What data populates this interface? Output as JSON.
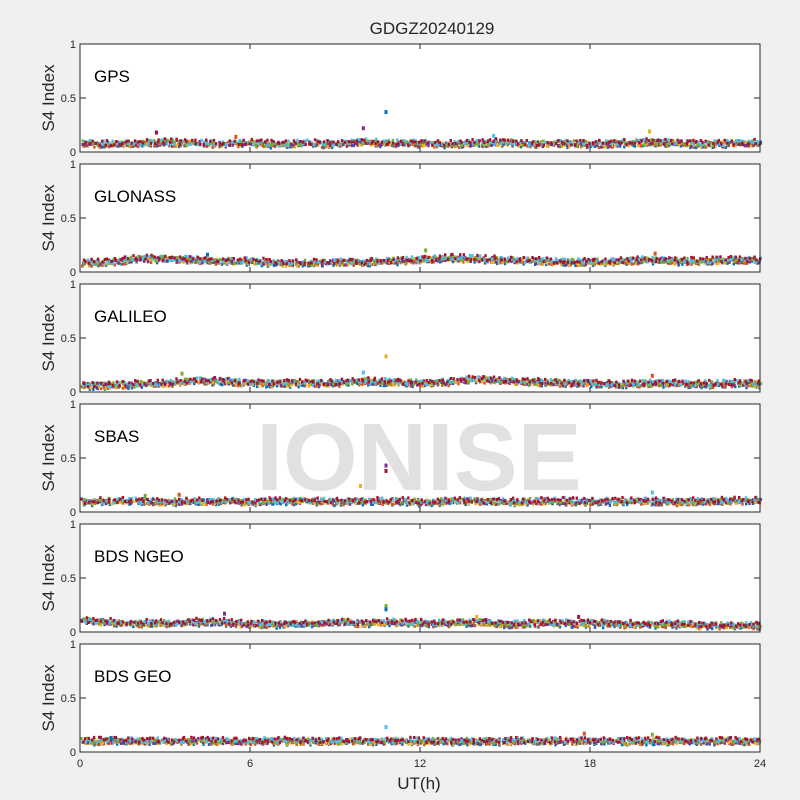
{
  "figure": {
    "title": "GDGZ20240129",
    "watermark": "IONISE",
    "xlabel": "UT(h)",
    "xticks": [
      "0",
      "6",
      "12",
      "18",
      "24"
    ],
    "ylabel": "S4 Index",
    "yticks": [
      "0",
      "0.5",
      "1"
    ]
  },
  "colors": {
    "background": "#f0f0f0",
    "axes_background": "#ffffff",
    "watermark": "#e1e1e1",
    "series_palette": [
      "#0072BD",
      "#D95319",
      "#EDB120",
      "#7E2F8E",
      "#77AC30",
      "#4DBEEE",
      "#A2142F"
    ]
  },
  "chart_data": [
    {
      "type": "scatter",
      "panel": "GPS",
      "xlim": [
        0,
        24
      ],
      "ylim": [
        0,
        1
      ],
      "grid": false,
      "baseline": [
        0.08,
        0.07,
        0.08,
        0.09,
        0.08,
        0.07,
        0.08,
        0.07,
        0.08,
        0.07,
        0.09,
        0.08,
        0.08,
        0.07,
        0.08,
        0.09,
        0.07,
        0.08,
        0.07,
        0.08,
        0.09,
        0.08,
        0.07,
        0.08,
        0.08
      ],
      "outliers": [
        [
          10.8,
          0.37
        ],
        [
          10.0,
          0.22
        ],
        [
          2.7,
          0.18
        ],
        [
          20.1,
          0.19
        ],
        [
          14.6,
          0.15
        ],
        [
          5.5,
          0.14
        ]
      ]
    },
    {
      "type": "scatter",
      "panel": "GLONASS",
      "xlim": [
        0,
        24
      ],
      "ylim": [
        0,
        1
      ],
      "grid": false,
      "baseline": [
        0.08,
        0.09,
        0.12,
        0.12,
        0.11,
        0.1,
        0.1,
        0.08,
        0.08,
        0.09,
        0.09,
        0.1,
        0.11,
        0.13,
        0.12,
        0.11,
        0.1,
        0.09,
        0.09,
        0.1,
        0.11,
        0.1,
        0.1,
        0.11,
        0.1
      ],
      "outliers": [
        [
          20.3,
          0.17
        ],
        [
          12.2,
          0.2
        ],
        [
          4.5,
          0.16
        ]
      ]
    },
    {
      "type": "scatter",
      "panel": "GALILEO",
      "xlim": [
        0,
        24
      ],
      "ylim": [
        0,
        1
      ],
      "grid": false,
      "baseline": [
        0.06,
        0.06,
        0.07,
        0.08,
        0.1,
        0.1,
        0.08,
        0.08,
        0.08,
        0.08,
        0.1,
        0.09,
        0.08,
        0.09,
        0.12,
        0.1,
        0.09,
        0.08,
        0.08,
        0.07,
        0.08,
        0.08,
        0.07,
        0.08,
        0.07
      ],
      "outliers": [
        [
          10.8,
          0.33
        ],
        [
          10.0,
          0.18
        ],
        [
          20.2,
          0.15
        ],
        [
          3.6,
          0.17
        ]
      ]
    },
    {
      "type": "scatter",
      "panel": "SBAS",
      "xlim": [
        0,
        24
      ],
      "ylim": [
        0,
        1
      ],
      "grid": false,
      "baseline": [
        0.09,
        0.1,
        0.1,
        0.09,
        0.1,
        0.1,
        0.09,
        0.1,
        0.1,
        0.09,
        0.1,
        0.1,
        0.09,
        0.1,
        0.1,
        0.09,
        0.1,
        0.1,
        0.09,
        0.1,
        0.1,
        0.09,
        0.1,
        0.1,
        0.1
      ],
      "outliers": [
        [
          10.8,
          0.43
        ],
        [
          10.8,
          0.38
        ],
        [
          9.9,
          0.24
        ],
        [
          20.2,
          0.18
        ],
        [
          3.5,
          0.16
        ],
        [
          2.3,
          0.15
        ]
      ]
    },
    {
      "type": "scatter",
      "panel": "BDS NGEO",
      "xlim": [
        0,
        24
      ],
      "ylim": [
        0,
        1
      ],
      "grid": false,
      "baseline": [
        0.1,
        0.09,
        0.08,
        0.08,
        0.09,
        0.09,
        0.07,
        0.07,
        0.08,
        0.09,
        0.08,
        0.09,
        0.08,
        0.08,
        0.09,
        0.07,
        0.08,
        0.08,
        0.08,
        0.07,
        0.07,
        0.07,
        0.06,
        0.06,
        0.06
      ],
      "outliers": [
        [
          10.8,
          0.24
        ],
        [
          10.8,
          0.21
        ],
        [
          5.1,
          0.17
        ],
        [
          17.6,
          0.14
        ],
        [
          14.0,
          0.14
        ]
      ]
    },
    {
      "type": "scatter",
      "panel": "BDS GEO",
      "xlim": [
        0,
        24
      ],
      "ylim": [
        0,
        1
      ],
      "grid": false,
      "baseline": [
        0.1,
        0.1,
        0.1,
        0.1,
        0.1,
        0.1,
        0.1,
        0.1,
        0.1,
        0.1,
        0.1,
        0.1,
        0.1,
        0.1,
        0.1,
        0.1,
        0.1,
        0.1,
        0.1,
        0.1,
        0.1,
        0.1,
        0.1,
        0.1,
        0.1
      ],
      "outliers": [
        [
          10.8,
          0.23
        ],
        [
          17.8,
          0.17
        ],
        [
          20.2,
          0.16
        ],
        [
          1.1,
          0.13
        ]
      ]
    }
  ]
}
